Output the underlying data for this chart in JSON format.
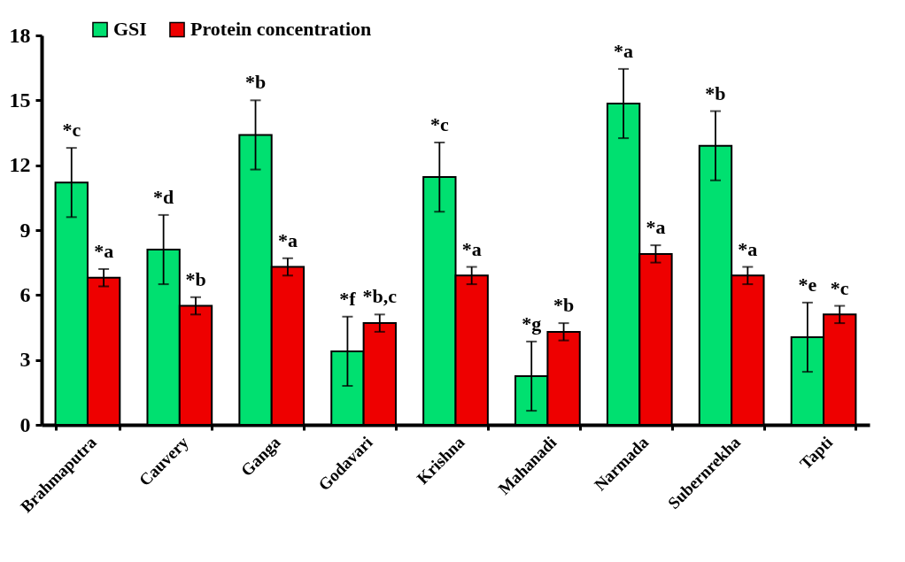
{
  "chart_data": {
    "type": "bar",
    "categories": [
      "Brahmaputra",
      "Cauvery",
      "Ganga",
      "Godavari",
      "Krishna",
      "Mahanadi",
      "Narmada",
      "Subernrekha",
      "Tapti"
    ],
    "series": [
      {
        "name": "GSI",
        "color": "#00e070",
        "values": [
          11.2,
          8.1,
          13.4,
          3.4,
          11.45,
          2.25,
          14.85,
          12.9,
          4.05
        ],
        "errors": [
          1.6,
          1.6,
          1.6,
          1.6,
          1.6,
          1.6,
          1.6,
          1.6,
          1.6
        ]
      },
      {
        "name": "Protein concentration",
        "color": "#ee0000",
        "values": [
          6.8,
          5.5,
          7.3,
          4.7,
          6.9,
          4.3,
          7.9,
          6.9,
          5.1
        ],
        "errors": [
          0.4,
          0.4,
          0.4,
          0.4,
          0.4,
          0.4,
          0.4,
          0.4,
          0.4
        ]
      }
    ],
    "ylim": [
      0,
      18
    ],
    "yticks": [
      0,
      3,
      6,
      9,
      12,
      15,
      18
    ],
    "grid": false,
    "legend": "top left",
    "annotations": [
      "*c",
      "*a",
      "*d",
      "*b",
      "*b",
      "*a",
      "*f",
      "*b,c",
      "*c",
      "*a",
      "*g",
      "*b",
      "*a",
      "*a",
      "*b",
      "*a",
      "*e",
      "*c"
    ]
  }
}
